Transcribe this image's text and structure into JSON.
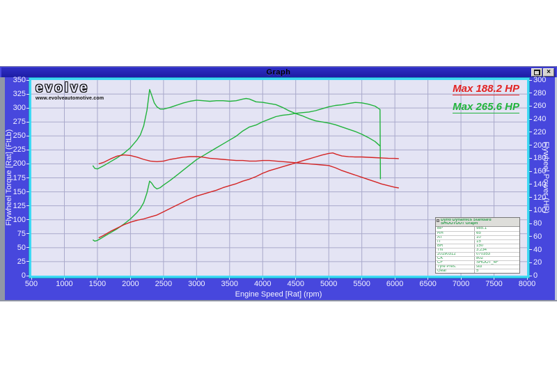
{
  "window": {
    "title": "Graph",
    "close_glyph": "×"
  },
  "branding": {
    "logo_text": "evolve",
    "logo_url": "www.evolveautomotive.com"
  },
  "annotations": {
    "max_red": "Max 188.2 HP",
    "max_green": "Max 265.6 HP"
  },
  "info_table": {
    "header_line1": "Dyno Dynamics Standard",
    "header_line2": "SHOOTOUT Graph",
    "rows": [
      [
        "BP",
        "985.1"
      ],
      [
        "RH",
        "65"
      ],
      [
        "AT",
        "10"
      ],
      [
        "IT",
        "15"
      ],
      [
        "BR",
        "150"
      ],
      [
        "TN",
        "3.234"
      ],
      [
        "20190312",
        "070353"
      ],
      [
        "CK",
        "802"
      ],
      [
        "CF",
        "SHOOT_4F"
      ],
      [
        "Tyre Pres.",
        "std"
      ],
      [
        "Gear",
        "5"
      ]
    ]
  },
  "chart_data": {
    "type": "line",
    "title": "Graph",
    "xlabel": "Engine Speed [Rat] (rpm)",
    "ylabel_left": "Flywheel Torque [Rat] (FtLb)",
    "ylabel_right": "Flywheel Power (HP)",
    "x_range": [
      500,
      8000
    ],
    "y_left_range": [
      0,
      350
    ],
    "y_right_range": [
      0,
      300
    ],
    "x_ticks": [
      500,
      1000,
      1500,
      2000,
      2500,
      3000,
      3500,
      4000,
      4500,
      5000,
      5500,
      6000,
      6500,
      7000,
      7500,
      8000
    ],
    "y_left_ticks": [
      0,
      25,
      50,
      75,
      100,
      125,
      150,
      175,
      200,
      225,
      250,
      275,
      300,
      325,
      350
    ],
    "y_right_ticks": [
      0,
      20,
      40,
      60,
      80,
      100,
      120,
      140,
      160,
      180,
      200,
      220,
      240,
      260,
      280,
      300
    ],
    "grid": true,
    "legend_position": "none",
    "max_power_red_hp": 188.2,
    "max_power_green_hp": 265.6,
    "series": [
      {
        "name": "torque_green",
        "axis": "left",
        "units": "FtLb",
        "color": "#21b33c",
        "points": [
          [
            1430,
            197
          ],
          [
            1460,
            192
          ],
          [
            1500,
            191
          ],
          [
            1550,
            194
          ],
          [
            1600,
            197
          ],
          [
            1700,
            204
          ],
          [
            1800,
            211
          ],
          [
            1900,
            219
          ],
          [
            2000,
            229
          ],
          [
            2100,
            243
          ],
          [
            2150,
            252
          ],
          [
            2200,
            268
          ],
          [
            2250,
            296
          ],
          [
            2290,
            333
          ],
          [
            2320,
            323
          ],
          [
            2360,
            309
          ],
          [
            2400,
            302
          ],
          [
            2450,
            298
          ],
          [
            2500,
            298
          ],
          [
            2600,
            301
          ],
          [
            2700,
            305
          ],
          [
            2800,
            309
          ],
          [
            2900,
            312
          ],
          [
            3000,
            314
          ],
          [
            3100,
            313
          ],
          [
            3200,
            312
          ],
          [
            3300,
            313
          ],
          [
            3400,
            313
          ],
          [
            3500,
            312
          ],
          [
            3600,
            313
          ],
          [
            3700,
            316
          ],
          [
            3750,
            317
          ],
          [
            3800,
            316
          ],
          [
            3900,
            311
          ],
          [
            4000,
            310
          ],
          [
            4100,
            308
          ],
          [
            4200,
            306
          ],
          [
            4300,
            301
          ],
          [
            4400,
            295
          ],
          [
            4500,
            290
          ],
          [
            4600,
            286
          ],
          [
            4700,
            281
          ],
          [
            4800,
            277
          ],
          [
            4900,
            275
          ],
          [
            5000,
            273
          ],
          [
            5100,
            270
          ],
          [
            5200,
            266
          ],
          [
            5300,
            262
          ],
          [
            5400,
            258
          ],
          [
            5500,
            253
          ],
          [
            5600,
            247
          ],
          [
            5700,
            240
          ],
          [
            5775,
            232
          ]
        ]
      },
      {
        "name": "power_green",
        "axis": "right",
        "units": "HP",
        "color": "#21b33c",
        "points": [
          [
            1430,
            55
          ],
          [
            1460,
            53
          ],
          [
            1500,
            54
          ],
          [
            1550,
            57
          ],
          [
            1600,
            60
          ],
          [
            1700,
            66
          ],
          [
            1800,
            72
          ],
          [
            1900,
            79
          ],
          [
            2000,
            87
          ],
          [
            2100,
            97
          ],
          [
            2150,
            103
          ],
          [
            2200,
            112
          ],
          [
            2250,
            127
          ],
          [
            2290,
            145
          ],
          [
            2320,
            142
          ],
          [
            2360,
            136
          ],
          [
            2400,
            133
          ],
          [
            2450,
            135
          ],
          [
            2500,
            139
          ],
          [
            2600,
            146
          ],
          [
            2700,
            154
          ],
          [
            2800,
            162
          ],
          [
            2900,
            170
          ],
          [
            3000,
            178
          ],
          [
            3100,
            184
          ],
          [
            3200,
            190
          ],
          [
            3300,
            196
          ],
          [
            3400,
            202
          ],
          [
            3500,
            208
          ],
          [
            3600,
            214
          ],
          [
            3700,
            222
          ],
          [
            3800,
            228
          ],
          [
            3900,
            231
          ],
          [
            4000,
            236
          ],
          [
            4100,
            240
          ],
          [
            4200,
            244
          ],
          [
            4300,
            246
          ],
          [
            4400,
            247
          ],
          [
            4500,
            249
          ],
          [
            4600,
            250
          ],
          [
            4700,
            251
          ],
          [
            4800,
            253
          ],
          [
            4900,
            256
          ],
          [
            5000,
            259
          ],
          [
            5100,
            261
          ],
          [
            5200,
            262
          ],
          [
            5300,
            264
          ],
          [
            5400,
            265.6
          ],
          [
            5500,
            265
          ],
          [
            5600,
            263
          ],
          [
            5700,
            260
          ],
          [
            5775,
            255
          ],
          [
            5782,
            148
          ]
        ]
      },
      {
        "name": "torque_red",
        "axis": "left",
        "units": "FtLb",
        "color": "#d42424",
        "points": [
          [
            1520,
            200
          ],
          [
            1600,
            203
          ],
          [
            1700,
            209
          ],
          [
            1800,
            214
          ],
          [
            1900,
            216
          ],
          [
            2000,
            215
          ],
          [
            2100,
            212
          ],
          [
            2200,
            208
          ],
          [
            2300,
            205
          ],
          [
            2400,
            204
          ],
          [
            2500,
            205
          ],
          [
            2600,
            208
          ],
          [
            2700,
            210
          ],
          [
            2800,
            212
          ],
          [
            2900,
            213
          ],
          [
            3000,
            213
          ],
          [
            3100,
            212
          ],
          [
            3200,
            210
          ],
          [
            3300,
            209
          ],
          [
            3400,
            208
          ],
          [
            3500,
            207
          ],
          [
            3600,
            206
          ],
          [
            3700,
            206
          ],
          [
            3800,
            205
          ],
          [
            3900,
            205
          ],
          [
            4000,
            206
          ],
          [
            4100,
            206
          ],
          [
            4200,
            205
          ],
          [
            4300,
            204
          ],
          [
            4400,
            203
          ],
          [
            4500,
            202
          ],
          [
            4600,
            201
          ],
          [
            4700,
            200
          ],
          [
            4800,
            199
          ],
          [
            4900,
            198
          ],
          [
            5000,
            197
          ],
          [
            5100,
            193
          ],
          [
            5200,
            188
          ],
          [
            5300,
            184
          ],
          [
            5400,
            180
          ],
          [
            5500,
            176
          ],
          [
            5600,
            172
          ],
          [
            5700,
            168
          ],
          [
            5800,
            164
          ],
          [
            5900,
            161
          ],
          [
            6000,
            158
          ],
          [
            6060,
            157
          ]
        ]
      },
      {
        "name": "power_red",
        "axis": "right",
        "units": "HP",
        "color": "#d42424",
        "points": [
          [
            1520,
            58
          ],
          [
            1600,
            62
          ],
          [
            1700,
            68
          ],
          [
            1800,
            73
          ],
          [
            1900,
            78
          ],
          [
            2000,
            82
          ],
          [
            2100,
            85
          ],
          [
            2200,
            87
          ],
          [
            2300,
            90
          ],
          [
            2400,
            93
          ],
          [
            2500,
            98
          ],
          [
            2600,
            103
          ],
          [
            2700,
            108
          ],
          [
            2800,
            113
          ],
          [
            2900,
            118
          ],
          [
            3000,
            122
          ],
          [
            3100,
            125
          ],
          [
            3200,
            128
          ],
          [
            3300,
            131
          ],
          [
            3400,
            135
          ],
          [
            3500,
            138
          ],
          [
            3600,
            141
          ],
          [
            3700,
            145
          ],
          [
            3800,
            148
          ],
          [
            3900,
            152
          ],
          [
            4000,
            157
          ],
          [
            4100,
            161
          ],
          [
            4200,
            164
          ],
          [
            4300,
            167
          ],
          [
            4400,
            170
          ],
          [
            4500,
            173
          ],
          [
            4600,
            176
          ],
          [
            4700,
            179
          ],
          [
            4800,
            182
          ],
          [
            4900,
            185
          ],
          [
            5000,
            187.5
          ],
          [
            5060,
            188.2
          ],
          [
            5120,
            186
          ],
          [
            5200,
            183.5
          ],
          [
            5300,
            182.5
          ],
          [
            5400,
            182
          ],
          [
            5500,
            182
          ],
          [
            5600,
            181.5
          ],
          [
            5700,
            181
          ],
          [
            5800,
            180.5
          ],
          [
            5900,
            180
          ],
          [
            6000,
            179.8
          ],
          [
            6060,
            179.5
          ]
        ]
      }
    ]
  },
  "colors": {
    "titlebar": "#2323b0",
    "content_blue": "#4747dd",
    "plot_bg": "#e4e4f4",
    "grid": "#a9a9cb",
    "cyan_border": "#3fd9f4",
    "red": "#d42424",
    "green": "#21b33c",
    "table_green": "#2d9e4d",
    "axis_text": "#f2f2ff"
  }
}
